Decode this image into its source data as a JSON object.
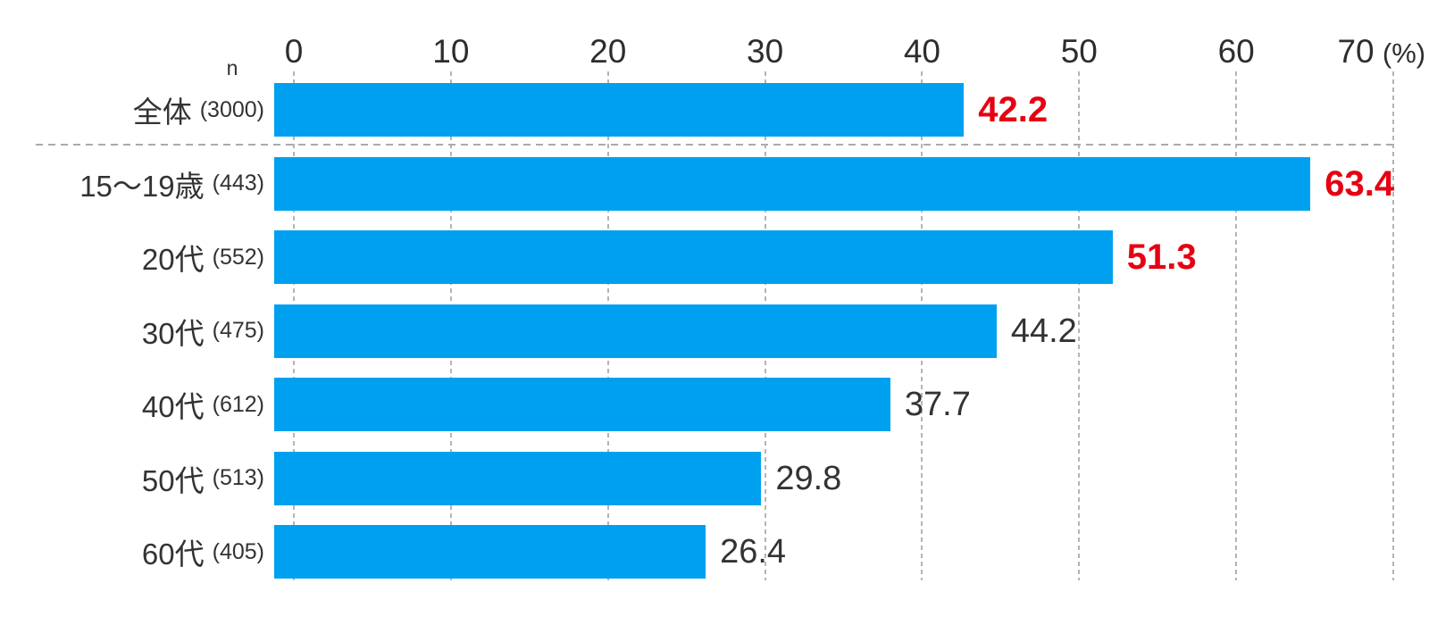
{
  "chart_data": {
    "type": "bar",
    "orientation": "horizontal",
    "unit_label": "(%)",
    "n_header": "n",
    "x_axis": {
      "min": 0,
      "max": 70,
      "tick_interval": 10,
      "tick_labels": [
        "0",
        "10",
        "20",
        "30",
        "40",
        "50",
        "60",
        "70"
      ]
    },
    "categories": [
      "全体",
      "15〜19歳",
      "20代",
      "30代",
      "40代",
      "50代",
      "60代"
    ],
    "n_values": [
      3000,
      443,
      552,
      475,
      612,
      513,
      405
    ],
    "values": [
      42.2,
      63.4,
      51.3,
      44.2,
      37.7,
      29.8,
      26.4
    ],
    "emphasized": [
      true,
      true,
      true,
      false,
      false,
      false,
      false
    ],
    "layout": {
      "grid": "dashed-vertical",
      "separator_after_first_row": true,
      "legend": "none"
    },
    "colors": {
      "bar": "#00A0F0",
      "value_emphasis": "#E60012",
      "value_normal": "#333333",
      "text": "#333333",
      "gridline": "#B4B4B4",
      "separator": "#ABABAB"
    }
  }
}
